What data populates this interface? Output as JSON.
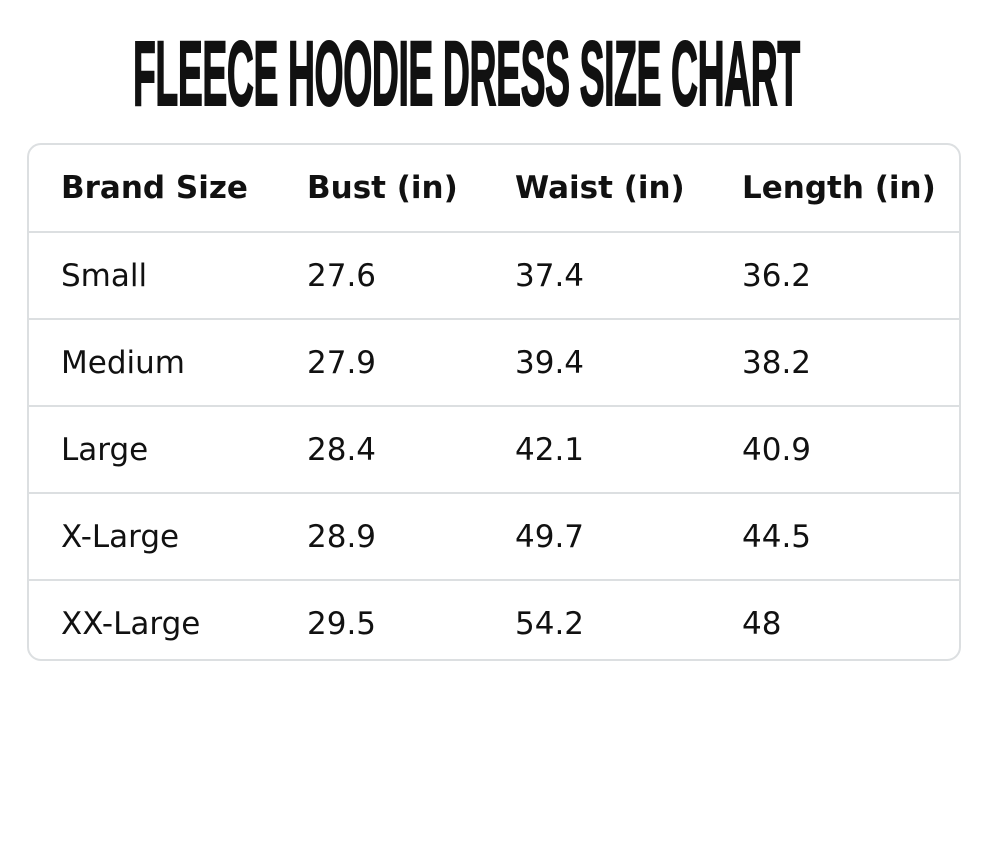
{
  "title": "FLEECE HOODIE DRESS SIZE CHART",
  "table": {
    "headers": [
      "Brand Size",
      "Bust (in)",
      "Waist (in)",
      "Length (in)"
    ],
    "rows": [
      [
        "Small",
        "27.6",
        "37.4",
        "36.2"
      ],
      [
        "Medium",
        "27.9",
        "39.4",
        "38.2"
      ],
      [
        "Large",
        "28.4",
        "42.1",
        "40.9"
      ],
      [
        "X-Large",
        "28.9",
        "49.7",
        "44.5"
      ],
      [
        "XX-Large",
        "29.5",
        "54.2",
        "48"
      ]
    ]
  }
}
